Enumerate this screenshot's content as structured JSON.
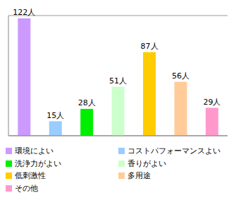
{
  "chart_data": {
    "type": "bar",
    "categories": [
      "環境によい",
      "コストパフォーマンスよい",
      "洗浄力がよい",
      "香りがよい",
      "低刺激性",
      "多用途",
      "その他"
    ],
    "values": [
      122,
      15,
      28,
      51,
      87,
      56,
      29
    ],
    "value_labels": [
      "122人",
      "15人",
      "28人",
      "51人",
      "87人",
      "56人",
      "29人"
    ],
    "colors": [
      "#cc99ff",
      "#99ccff",
      "#00ee00",
      "#ccffcc",
      "#ffcc00",
      "#ffcc99",
      "#ff99cc"
    ],
    "ylim": [
      0,
      125
    ],
    "yticks": [
      0,
      25,
      50,
      75,
      100,
      125
    ],
    "grid": true,
    "data_labels": true,
    "legend": "bottom",
    "tick_labels": false
  }
}
